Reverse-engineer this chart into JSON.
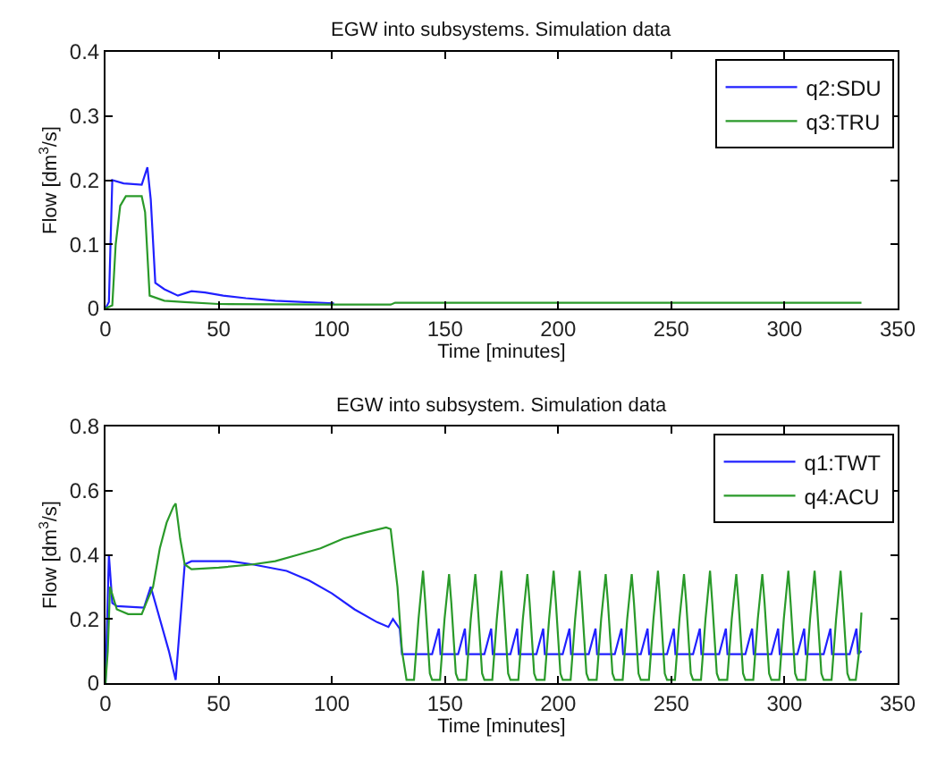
{
  "chart_data": [
    {
      "type": "line",
      "title": "EGW into subsystems. Simulation data",
      "xlabel": "Time [minutes]",
      "ylabel": "Flow [dm$^{3}$/s]",
      "xlim": [
        0,
        350
      ],
      "xticks": [
        0,
        50,
        100,
        150,
        200,
        250,
        300,
        350
      ],
      "ylim": [
        0,
        0.4
      ],
      "yticks": [
        0,
        0.1,
        0.2,
        0.3,
        0.4
      ],
      "grid": false,
      "legend": "top right",
      "line_style": "solid",
      "marker": "none",
      "series": [
        {
          "name": "q2:SDU",
          "color": "#2020ff",
          "x": [
            0,
            1.5,
            3,
            8,
            16,
            18.5,
            20,
            22,
            26,
            32,
            38,
            44,
            52,
            62,
            75,
            88,
            101
          ],
          "values": [
            0,
            0.01,
            0.2,
            0.195,
            0.193,
            0.22,
            0.17,
            0.04,
            0.03,
            0.02,
            0.027,
            0.025,
            0.02,
            0.016,
            0.012,
            0.01,
            0.008
          ]
        },
        {
          "name": "q3:TRU",
          "color": "#2a9a2a",
          "x": [
            0,
            3,
            4.5,
            6.5,
            9,
            16,
            17.5,
            19.5,
            26,
            35,
            50,
            100,
            126,
            128,
            334
          ],
          "values": [
            0,
            0.005,
            0.1,
            0.16,
            0.175,
            0.175,
            0.15,
            0.02,
            0.012,
            0.01,
            0.007,
            0.006,
            0.006,
            0.009,
            0.009
          ]
        }
      ]
    },
    {
      "type": "line",
      "title": "EGW into subsystem. Simulation data",
      "xlabel": "Time [minutes]",
      "ylabel": "Flow [dm$^{3}$/s]",
      "xlim": [
        0,
        350
      ],
      "xticks": [
        0,
        50,
        100,
        150,
        200,
        250,
        300,
        350
      ],
      "ylim": [
        0,
        0.8
      ],
      "yticks": [
        0,
        0.2,
        0.4,
        0.6,
        0.8
      ],
      "grid": false,
      "legend": "top right",
      "line_style": "solid",
      "marker": "none",
      "series": [
        {
          "name": "q1:TWT",
          "color": "#2020ff",
          "x": [
            0,
            1.5,
            3,
            5,
            17,
            20,
            24,
            28,
            31,
            35,
            38,
            55,
            65,
            80,
            90,
            100,
            110,
            120,
            125,
            127,
            130,
            131,
            144.3,
            147.3,
            148.0,
            155.8,
            158.8,
            159.5,
            167.4,
            170.4,
            171.1,
            178.9,
            181.9,
            182.6,
            190.4,
            193.4,
            194.1,
            202.0,
            205.0,
            205.7,
            213.5,
            216.5,
            217.2,
            225.0,
            228.0,
            228.7,
            236.5,
            239.5,
            240.2,
            248.1,
            251.1,
            251.8,
            259.6,
            262.6,
            263.3,
            271.1,
            274.1,
            274.8,
            282.7,
            285.7,
            286.4,
            294.2,
            297.2,
            297.9,
            305.7,
            308.7,
            309.4,
            317.3,
            320.3,
            321.0,
            328.8,
            331.8,
            332.5,
            334
          ],
          "values": [
            0,
            0.4,
            0.25,
            0.24,
            0.235,
            0.3,
            0.2,
            0.1,
            0.01,
            0.37,
            0.38,
            0.38,
            0.37,
            0.35,
            0.32,
            0.28,
            0.23,
            0.19,
            0.175,
            0.2,
            0.17,
            0.09,
            0.09,
            0.17,
            0.09,
            0.09,
            0.17,
            0.09,
            0.09,
            0.17,
            0.09,
            0.09,
            0.17,
            0.09,
            0.09,
            0.17,
            0.09,
            0.09,
            0.17,
            0.09,
            0.09,
            0.17,
            0.09,
            0.09,
            0.17,
            0.09,
            0.09,
            0.17,
            0.09,
            0.09,
            0.17,
            0.09,
            0.09,
            0.17,
            0.09,
            0.09,
            0.17,
            0.09,
            0.09,
            0.17,
            0.09,
            0.09,
            0.17,
            0.09,
            0.09,
            0.17,
            0.09,
            0.09,
            0.17,
            0.09,
            0.09,
            0.17,
            0.09,
            0.1
          ]
        },
        {
          "name": "q4:ACU",
          "color": "#2a9a2a",
          "x": [
            0,
            1,
            2,
            5,
            10,
            16,
            18,
            21,
            24,
            27,
            30,
            31,
            33,
            35,
            38,
            50,
            65,
            75,
            85,
            95,
            105,
            115,
            124,
            126,
            129,
            131,
            133,
            136.3,
            138.3,
            140.3,
            141.3,
            143.3,
            144.3,
            147.8,
            149.8,
            151.8,
            152.8,
            154.8,
            155.8,
            159.4,
            161.4,
            163.4,
            164.4,
            166.4,
            167.4,
            170.9,
            172.9,
            174.9,
            175.9,
            177.9,
            178.9,
            182.4,
            184.4,
            186.4,
            187.4,
            189.4,
            190.4,
            194.0,
            196.0,
            198.0,
            199.0,
            201.0,
            202.0,
            205.5,
            207.5,
            209.5,
            210.5,
            212.5,
            213.5,
            217.0,
            219.0,
            221.0,
            222.0,
            224.0,
            225.0,
            228.5,
            230.5,
            232.5,
            233.5,
            235.5,
            236.5,
            240.1,
            242.1,
            244.1,
            245.1,
            247.1,
            248.1,
            251.6,
            253.6,
            255.6,
            256.6,
            258.6,
            259.6,
            263.1,
            265.1,
            267.1,
            268.1,
            270.1,
            271.1,
            274.7,
            276.7,
            278.7,
            279.7,
            281.7,
            282.7,
            286.2,
            288.2,
            290.2,
            291.2,
            293.2,
            294.2,
            297.7,
            299.7,
            301.7,
            302.7,
            304.7,
            305.7,
            309.3,
            311.3,
            313.3,
            314.3,
            316.3,
            317.3,
            320.8,
            322.8,
            324.8,
            325.8,
            327.8,
            328.8,
            331.5,
            333,
            334
          ],
          "values": [
            0,
            0.1,
            0.3,
            0.23,
            0.215,
            0.215,
            0.25,
            0.3,
            0.42,
            0.5,
            0.55,
            0.56,
            0.45,
            0.37,
            0.355,
            0.36,
            0.37,
            0.38,
            0.4,
            0.42,
            0.45,
            0.47,
            0.485,
            0.48,
            0.3,
            0.1,
            0.01,
            0.01,
            0.2,
            0.35,
            0.25,
            0.03,
            0.01,
            0.01,
            0.2,
            0.34,
            0.25,
            0.03,
            0.01,
            0.01,
            0.2,
            0.34,
            0.25,
            0.03,
            0.01,
            0.01,
            0.2,
            0.35,
            0.25,
            0.03,
            0.01,
            0.01,
            0.2,
            0.34,
            0.25,
            0.03,
            0.01,
            0.01,
            0.2,
            0.35,
            0.25,
            0.03,
            0.01,
            0.01,
            0.2,
            0.35,
            0.25,
            0.03,
            0.01,
            0.01,
            0.2,
            0.34,
            0.25,
            0.03,
            0.01,
            0.01,
            0.2,
            0.34,
            0.25,
            0.03,
            0.01,
            0.01,
            0.2,
            0.35,
            0.25,
            0.03,
            0.01,
            0.01,
            0.2,
            0.34,
            0.25,
            0.03,
            0.01,
            0.01,
            0.2,
            0.35,
            0.25,
            0.03,
            0.01,
            0.01,
            0.2,
            0.34,
            0.25,
            0.03,
            0.01,
            0.01,
            0.2,
            0.34,
            0.25,
            0.03,
            0.01,
            0.01,
            0.2,
            0.35,
            0.25,
            0.03,
            0.01,
            0.01,
            0.2,
            0.35,
            0.25,
            0.03,
            0.01,
            0.01,
            0.2,
            0.35,
            0.25,
            0.03,
            0.01,
            0.01,
            0.1,
            0.22
          ]
        }
      ]
    }
  ]
}
